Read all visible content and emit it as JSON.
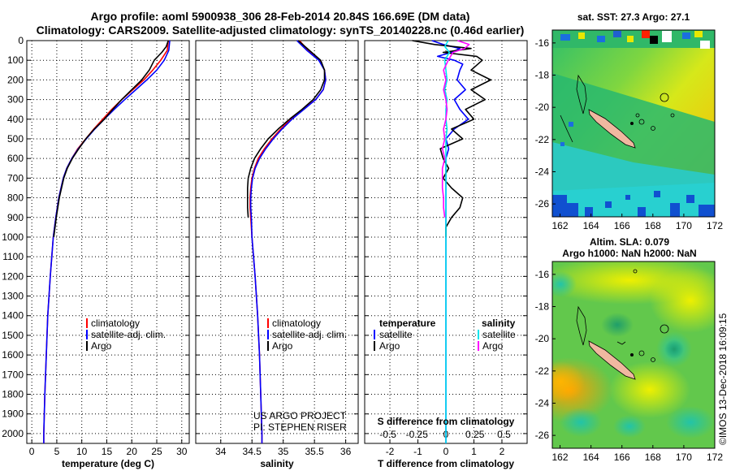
{
  "header": {
    "title_line1": "Argo profile: aoml 5900938_306 28-Feb-2014 20.84S 166.69E (DM data)",
    "title_line2": "Climatology: CARS2009. Satellite-adjusted climatology: synTS_20140228.nc (0.46d earlier)"
  },
  "colors": {
    "climatology": "#ff0000",
    "satellite": "#0000ff",
    "argo": "#000000",
    "sal_satellite": "#00e5ee",
    "sal_argo": "#ff00ff"
  },
  "credit": {
    "line1": "US ARGO PROJECT",
    "line2": "PI: STEPHEN RISER"
  },
  "stamp": "©IMOS 13-Dec-2018 16:09:15",
  "chart_data": [
    {
      "id": "temperature",
      "type": "line",
      "xlabel": "temperature (deg C)",
      "ylabel": "pressure",
      "xlim": [
        -1,
        31.5
      ],
      "ylim": [
        2050,
        0
      ],
      "xticks": [
        0,
        5,
        10,
        15,
        20,
        25,
        30
      ],
      "yticks": [
        0,
        100,
        200,
        300,
        400,
        500,
        600,
        700,
        800,
        900,
        1000,
        1100,
        1200,
        1300,
        1400,
        1500,
        1600,
        1700,
        1800,
        1900,
        2000
      ],
      "legend": [
        "climatology",
        "satellite-adj. clim.",
        "Argo"
      ],
      "series": [
        {
          "name": "climatology",
          "color": "#ff0000",
          "y": [
            0,
            50,
            100,
            150,
            200,
            250,
            300,
            350,
            400,
            450,
            500,
            550,
            600,
            650,
            700,
            800,
            900,
            1000,
            1200,
            1400,
            1600,
            1800,
            2000,
            2050
          ],
          "x": [
            27.3,
            27.1,
            25.8,
            24.2,
            22.4,
            20.2,
            18.0,
            16.0,
            14.2,
            12.4,
            10.8,
            9.2,
            8.0,
            7.0,
            6.3,
            5.4,
            4.8,
            4.3,
            3.7,
            3.2,
            2.9,
            2.6,
            2.4,
            2.4
          ]
        },
        {
          "name": "satellite-adj. clim.",
          "color": "#0000ff",
          "y": [
            0,
            50,
            100,
            150,
            200,
            250,
            300,
            350,
            400,
            450,
            500,
            550,
            600,
            650,
            700,
            800,
            900,
            1000,
            1200,
            1400,
            1600,
            1800,
            2000,
            2050
          ],
          "x": [
            27.6,
            27.4,
            26.5,
            25.0,
            23.0,
            20.8,
            18.6,
            16.5,
            14.5,
            12.6,
            10.9,
            9.3,
            8.0,
            7.0,
            6.3,
            5.4,
            4.8,
            4.3,
            3.7,
            3.2,
            2.9,
            2.6,
            2.4,
            2.4
          ]
        },
        {
          "name": "Argo",
          "color": "#000000",
          "y": [
            0,
            30,
            60,
            100,
            150,
            200,
            250,
            300,
            350,
            400,
            450,
            500,
            550,
            600,
            650,
            700,
            800,
            900,
            1000
          ],
          "x": [
            27.3,
            26.9,
            26.0,
            24.5,
            23.5,
            22.0,
            20.0,
            18.0,
            16.2,
            14.5,
            12.5,
            10.8,
            9.4,
            8.1,
            7.1,
            6.4,
            5.5,
            4.9,
            4.4
          ]
        }
      ]
    },
    {
      "id": "salinity",
      "type": "line",
      "xlabel": "salinity",
      "xlim": [
        33.6,
        36.2
      ],
      "ylim": [
        2050,
        0
      ],
      "xticks": [
        34,
        34.5,
        35,
        35.5,
        36
      ],
      "tick_labels": [
        "34",
        "34.5",
        "35",
        "35.5",
        "36"
      ],
      "legend": [
        "climatology",
        "satellite-adj. clim.",
        "Argo"
      ],
      "series": [
        {
          "name": "climatology",
          "color": "#ff0000",
          "y": [
            0,
            50,
            100,
            150,
            200,
            250,
            300,
            350,
            400,
            450,
            500,
            550,
            600,
            650,
            700,
            750,
            800,
            850,
            900,
            1000,
            1200,
            1400,
            1600,
            1800,
            2000,
            2050
          ],
          "x": [
            35.26,
            35.4,
            35.58,
            35.66,
            35.68,
            35.64,
            35.52,
            35.32,
            35.12,
            34.96,
            34.82,
            34.7,
            34.6,
            34.54,
            34.5,
            34.48,
            34.47,
            34.47,
            34.48,
            34.5,
            34.55,
            34.59,
            34.62,
            34.64,
            34.66,
            34.66
          ]
        },
        {
          "name": "satellite-adj. clim.",
          "color": "#0000ff",
          "y": [
            0,
            50,
            100,
            150,
            200,
            250,
            300,
            350,
            400,
            450,
            500,
            550,
            600,
            650,
            700,
            750,
            800,
            850,
            900,
            1000,
            1200,
            1400,
            1600,
            1800,
            2000,
            2050
          ],
          "x": [
            35.22,
            35.38,
            35.57,
            35.66,
            35.68,
            35.64,
            35.52,
            35.33,
            35.14,
            34.98,
            34.84,
            34.72,
            34.62,
            34.55,
            34.51,
            34.49,
            34.48,
            34.48,
            34.49,
            34.5,
            34.55,
            34.59,
            34.62,
            34.64,
            34.66,
            34.66
          ]
        },
        {
          "name": "Argo",
          "color": "#000000",
          "y": [
            0,
            50,
            100,
            150,
            200,
            250,
            300,
            350,
            400,
            450,
            500,
            550,
            600,
            650,
            700,
            750,
            800,
            850,
            900
          ],
          "x": [
            35.24,
            35.42,
            35.6,
            35.66,
            35.66,
            35.6,
            35.48,
            35.3,
            35.1,
            34.92,
            34.76,
            34.64,
            34.54,
            34.48,
            34.44,
            34.43,
            34.43,
            34.43,
            34.44
          ]
        }
      ]
    },
    {
      "id": "difference",
      "type": "line",
      "xlabel": "T difference from climatology",
      "xlabel2": "S difference from climatology",
      "xlim": [
        -2.9,
        2.9
      ],
      "ylim": [
        2050,
        0
      ],
      "xticks": [
        -2,
        -1,
        0,
        1,
        2
      ],
      "xticks2": [
        -0.5,
        -0.25,
        0,
        0.25,
        0.5
      ],
      "tick2_labels": [
        "-0.5",
        "-0.25",
        "0",
        "0.25",
        "0.5"
      ],
      "legend_title_left": "temperature",
      "legend_title_right": "salinity",
      "legend_left": [
        "satellite",
        "Argo"
      ],
      "legend_right": [
        "satellite",
        "Argo"
      ],
      "series": [
        {
          "name": "T satellite",
          "color": "#0000ff",
          "y": [
            0,
            20,
            40,
            60,
            80,
            100,
            120,
            150,
            200,
            250,
            300,
            350,
            400,
            450,
            500,
            550,
            600,
            700,
            800,
            900,
            1000,
            1200,
            1400,
            1600,
            1800,
            2000,
            2050
          ],
          "x": [
            -0.5,
            -0.1,
            0.5,
            0.2,
            -0.3,
            0.3,
            0.6,
            0.5,
            0.4,
            0.7,
            0.3,
            0.5,
            0.8,
            0.3,
            0.0,
            0.1,
            0.0,
            0.0,
            0.0,
            0.0,
            0.0,
            0.0,
            0.0,
            0.0,
            0.0,
            0.0,
            0.0
          ]
        },
        {
          "name": "T Argo",
          "color": "#000000",
          "y": [
            0,
            20,
            40,
            60,
            80,
            100,
            150,
            200,
            250,
            300,
            350,
            400,
            450,
            500,
            550,
            600,
            650,
            700,
            750,
            800,
            850,
            900,
            950,
            1000
          ],
          "x": [
            -1.2,
            -0.4,
            0.9,
            -0.1,
            1.1,
            1.3,
            0.9,
            1.6,
            0.9,
            1.4,
            0.7,
            1.0,
            0.2,
            0.6,
            -0.2,
            -0.1,
            0.1,
            -0.1,
            0.2,
            0.6,
            0.5,
            0.2,
            0.0,
            0.0
          ]
        },
        {
          "name": "S satellite",
          "color": "#00e5ee",
          "y": [
            0,
            30,
            60,
            100,
            150,
            200,
            250,
            300,
            350,
            400,
            450,
            500,
            550,
            600,
            700,
            800,
            900,
            1000,
            1200,
            1400,
            1600,
            1800,
            2000,
            2050
          ],
          "x": [
            0.02,
            -0.01,
            0.03,
            -0.01,
            0.0,
            0.01,
            -0.01,
            0.01,
            0.0,
            0.0,
            0.01,
            0.0,
            0.0,
            0.0,
            0.0,
            0.0,
            0.0,
            0.0,
            0.0,
            0.0,
            0.0,
            0.0,
            0.0,
            0.0
          ]
        },
        {
          "name": "S Argo",
          "color": "#ff00ff",
          "y": [
            0,
            20,
            40,
            60,
            100,
            150,
            200,
            250,
            300,
            350,
            400,
            450,
            500,
            550,
            600,
            650,
            700,
            750,
            800,
            850,
            900
          ],
          "x": [
            0.1,
            0.2,
            0.16,
            0.06,
            0.02,
            -0.02,
            0.0,
            -0.02,
            0.0,
            0.01,
            0.0,
            -0.02,
            -0.01,
            -0.03,
            -0.01,
            -0.03,
            -0.03,
            -0.03,
            -0.02,
            -0.02,
            -0.01
          ]
        }
      ]
    },
    {
      "id": "sst_map",
      "type": "heatmap",
      "title": "sat. SST: 27.3 Argo: 27.1",
      "xlim": [
        161.5,
        172
      ],
      "ylim": [
        -26.8,
        -15.2
      ],
      "xticks": [
        162,
        164,
        166,
        168,
        170,
        172
      ],
      "yticks": [
        -16,
        -18,
        -20,
        -22,
        -24,
        -26
      ]
    },
    {
      "id": "sla_map",
      "type": "heatmap",
      "title": "Altim. SLA: 0.079",
      "subtitle": "Argo h1000: NaN h2000: NaN",
      "xlim": [
        161.5,
        172
      ],
      "ylim": [
        -26.8,
        -15.2
      ],
      "xticks": [
        162,
        164,
        166,
        168,
        170,
        172
      ],
      "yticks": [
        -16,
        -18,
        -20,
        -22,
        -24,
        -26
      ]
    }
  ]
}
